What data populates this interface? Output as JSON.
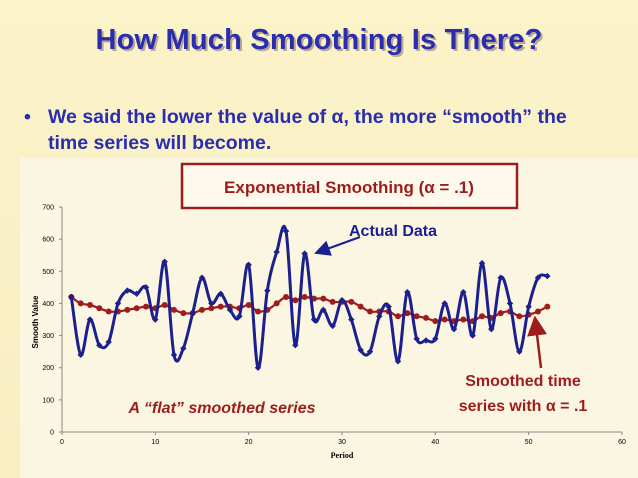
{
  "slide": {
    "title": "How Much Smoothing Is There?",
    "bullet_marker": "•",
    "bullet_text": "We said the lower the value of α, the more “smooth” the time series will become."
  },
  "colors": {
    "title": "#2a2db0",
    "actual_series": "#1c1f8e",
    "smoothed_series": "#9e1c1c",
    "callout_text": "#9e1c1c",
    "background": "#fbf3c9"
  },
  "chart_data": {
    "type": "line",
    "title": "Exponential Smoothing (α = .1)",
    "xlabel": "Period",
    "ylabel": "Smooth Value",
    "xlim": [
      0,
      60
    ],
    "ylim": [
      0,
      700
    ],
    "x_ticks": [
      0,
      10,
      20,
      30,
      40,
      50,
      60
    ],
    "y_ticks": [
      0,
      100,
      200,
      300,
      400,
      500,
      600,
      700
    ],
    "grid": false,
    "legend": "none",
    "series": [
      {
        "name": "Actual Data",
        "marker": "diamond",
        "x": [
          1,
          2,
          3,
          4,
          5,
          6,
          7,
          8,
          9,
          10,
          11,
          12,
          13,
          14,
          15,
          16,
          17,
          18,
          19,
          20,
          21,
          22,
          23,
          24,
          25,
          26,
          27,
          28,
          29,
          30,
          31,
          32,
          33,
          34,
          35,
          36,
          37,
          38,
          39,
          40,
          41,
          42,
          43,
          44,
          45,
          46,
          47,
          48,
          49,
          50,
          51,
          52
        ],
        "values": [
          420,
          240,
          350,
          270,
          280,
          400,
          440,
          430,
          450,
          350,
          530,
          240,
          260,
          370,
          480,
          400,
          430,
          380,
          360,
          520,
          200,
          440,
          560,
          625,
          270,
          555,
          350,
          380,
          330,
          410,
          350,
          255,
          250,
          360,
          390,
          220,
          435,
          290,
          285,
          290,
          400,
          320,
          435,
          300,
          525,
          320,
          480,
          400,
          250,
          390,
          480,
          485
        ]
      },
      {
        "name": "Smoothed time series with α = .1",
        "marker": "circle",
        "x": [
          1,
          2,
          3,
          4,
          5,
          6,
          7,
          8,
          9,
          10,
          11,
          12,
          13,
          14,
          15,
          16,
          17,
          18,
          19,
          20,
          21,
          22,
          23,
          24,
          25,
          26,
          27,
          28,
          29,
          30,
          31,
          32,
          33,
          34,
          35,
          36,
          37,
          38,
          39,
          40,
          41,
          42,
          43,
          44,
          45,
          46,
          47,
          48,
          49,
          50,
          51,
          52
        ],
        "values": [
          420,
          400,
          395,
          385,
          375,
          375,
          380,
          385,
          390,
          385,
          395,
          380,
          370,
          370,
          380,
          385,
          390,
          390,
          385,
          395,
          375,
          380,
          400,
          420,
          410,
          420,
          415,
          415,
          405,
          405,
          405,
          390,
          375,
          375,
          375,
          360,
          370,
          360,
          355,
          345,
          350,
          345,
          350,
          345,
          360,
          355,
          370,
          375,
          360,
          365,
          375,
          390
        ]
      }
    ],
    "annotations": {
      "actual_label": "Actual Data",
      "smoothed_label": "Smoothed time series with α = .1",
      "smoothed_label_line1": "Smoothed time",
      "smoothed_label_line2": "series with α = .1",
      "flat_note": "A “flat” smoothed series"
    }
  }
}
